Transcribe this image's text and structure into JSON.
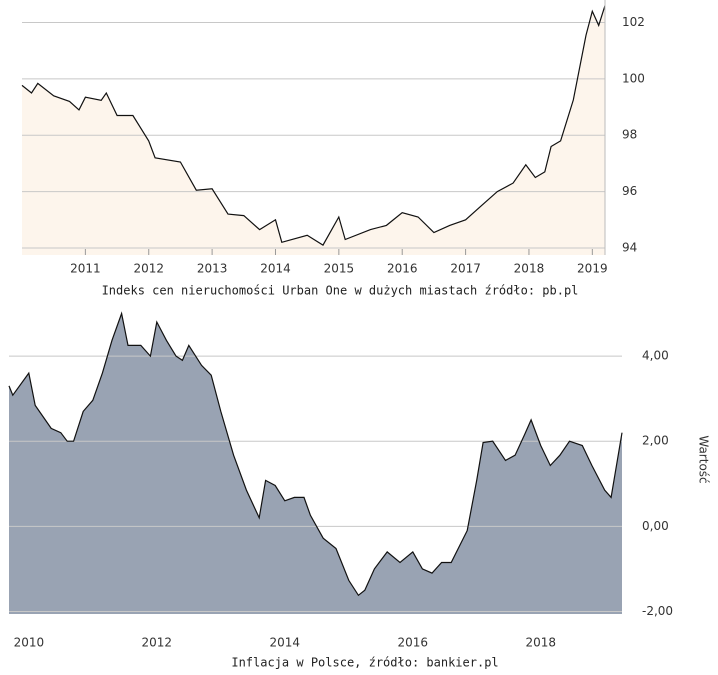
{
  "chart_data": [
    {
      "type": "area",
      "title": "Indeks cen nieruchomości Urban One w dużych miastach źródło: pb.pl",
      "x": [
        2010.0,
        2010.15,
        2010.25,
        2010.5,
        2010.75,
        2010.9,
        2011.0,
        2011.25,
        2011.33,
        2011.5,
        2011.75,
        2012.0,
        2012.1,
        2012.5,
        2012.75,
        2013.0,
        2013.25,
        2013.5,
        2013.75,
        2014.0,
        2014.1,
        2014.5,
        2014.75,
        2015.0,
        2015.1,
        2015.5,
        2015.75,
        2016.0,
        2016.25,
        2016.5,
        2016.75,
        2017.0,
        2017.25,
        2017.5,
        2017.75,
        2017.95,
        2018.1,
        2018.25,
        2018.35,
        2018.5,
        2018.7,
        2018.9,
        2019.0,
        2019.1,
        2019.2
      ],
      "values": [
        99.77,
        99.5,
        99.84,
        99.4,
        99.2,
        98.9,
        99.35,
        99.24,
        99.5,
        98.7,
        98.7,
        97.8,
        97.2,
        97.05,
        96.05,
        96.1,
        95.2,
        95.15,
        94.65,
        95.0,
        94.2,
        94.45,
        94.1,
        95.1,
        94.3,
        94.65,
        94.8,
        95.25,
        95.1,
        94.55,
        94.8,
        95.0,
        95.5,
        96.0,
        96.3,
        96.95,
        96.5,
        96.7,
        97.6,
        97.8,
        99.25,
        101.55,
        102.4,
        101.9,
        102.6
      ],
      "color": "#111111",
      "fill": "#fdf5ec",
      "xlim": [
        2010.0,
        2019.2
      ],
      "ylim": [
        93.75,
        102.8
      ],
      "xticks": [
        2011,
        2012,
        2013,
        2014,
        2015,
        2016,
        2017,
        2018,
        2019
      ],
      "yticks": [
        94,
        96,
        98,
        100,
        102
      ],
      "grid": true
    },
    {
      "type": "area",
      "title": "Inflacja w Polsce, źródło: bankier.pl",
      "y_label": "Wartość",
      "x": [
        2009.69,
        2009.75,
        2010.0,
        2010.1,
        2010.35,
        2010.5,
        2010.6,
        2010.7,
        2010.85,
        2011.0,
        2011.15,
        2011.3,
        2011.45,
        2011.55,
        2011.75,
        2011.9,
        2012.0,
        2012.15,
        2012.3,
        2012.4,
        2012.5,
        2012.7,
        2012.85,
        2013.0,
        2013.2,
        2013.4,
        2013.6,
        2013.7,
        2013.85,
        2014.0,
        2014.15,
        2014.3,
        2014.4,
        2014.6,
        2014.8,
        2015.0,
        2015.15,
        2015.25,
        2015.4,
        2015.6,
        2015.8,
        2016.0,
        2016.15,
        2016.3,
        2016.45,
        2016.6,
        2016.85,
        2017.0,
        2017.1,
        2017.25,
        2017.45,
        2017.6,
        2017.75,
        2017.85,
        2018.0,
        2018.15,
        2018.3,
        2018.45,
        2018.65,
        2018.8,
        2019.0,
        2019.1,
        2019.27
      ],
      "values": [
        3.3,
        3.08,
        3.6,
        2.84,
        2.3,
        2.2,
        2.0,
        2.0,
        2.7,
        2.96,
        3.6,
        4.37,
        5.0,
        4.25,
        4.25,
        4.0,
        4.8,
        4.37,
        4.0,
        3.9,
        4.25,
        3.78,
        3.55,
        2.7,
        1.67,
        0.85,
        0.2,
        1.08,
        0.96,
        0.6,
        0.68,
        0.68,
        0.26,
        -0.28,
        -0.52,
        -1.27,
        -1.62,
        -1.5,
        -1.0,
        -0.6,
        -0.85,
        -0.6,
        -1.0,
        -1.1,
        -0.85,
        -0.85,
        -0.1,
        1.08,
        1.97,
        2.0,
        1.55,
        1.67,
        2.16,
        2.5,
        1.9,
        1.43,
        1.67,
        2.0,
        1.9,
        1.43,
        0.85,
        0.68,
        2.2
      ],
      "color": "#111111",
      "fill": "#99a3b3",
      "xlim": [
        2009.69,
        2019.27
      ],
      "ylim": [
        -2.06,
        5.2
      ],
      "xticks": [
        2010,
        2012,
        2014,
        2016,
        2018
      ],
      "yticks": [
        {
          "value": 4,
          "label": "4,00"
        },
        {
          "value": 2,
          "label": "2,00"
        },
        {
          "value": 0,
          "label": "0,00"
        },
        {
          "value": -2,
          "label": "-2,00"
        }
      ],
      "grid": true
    }
  ]
}
